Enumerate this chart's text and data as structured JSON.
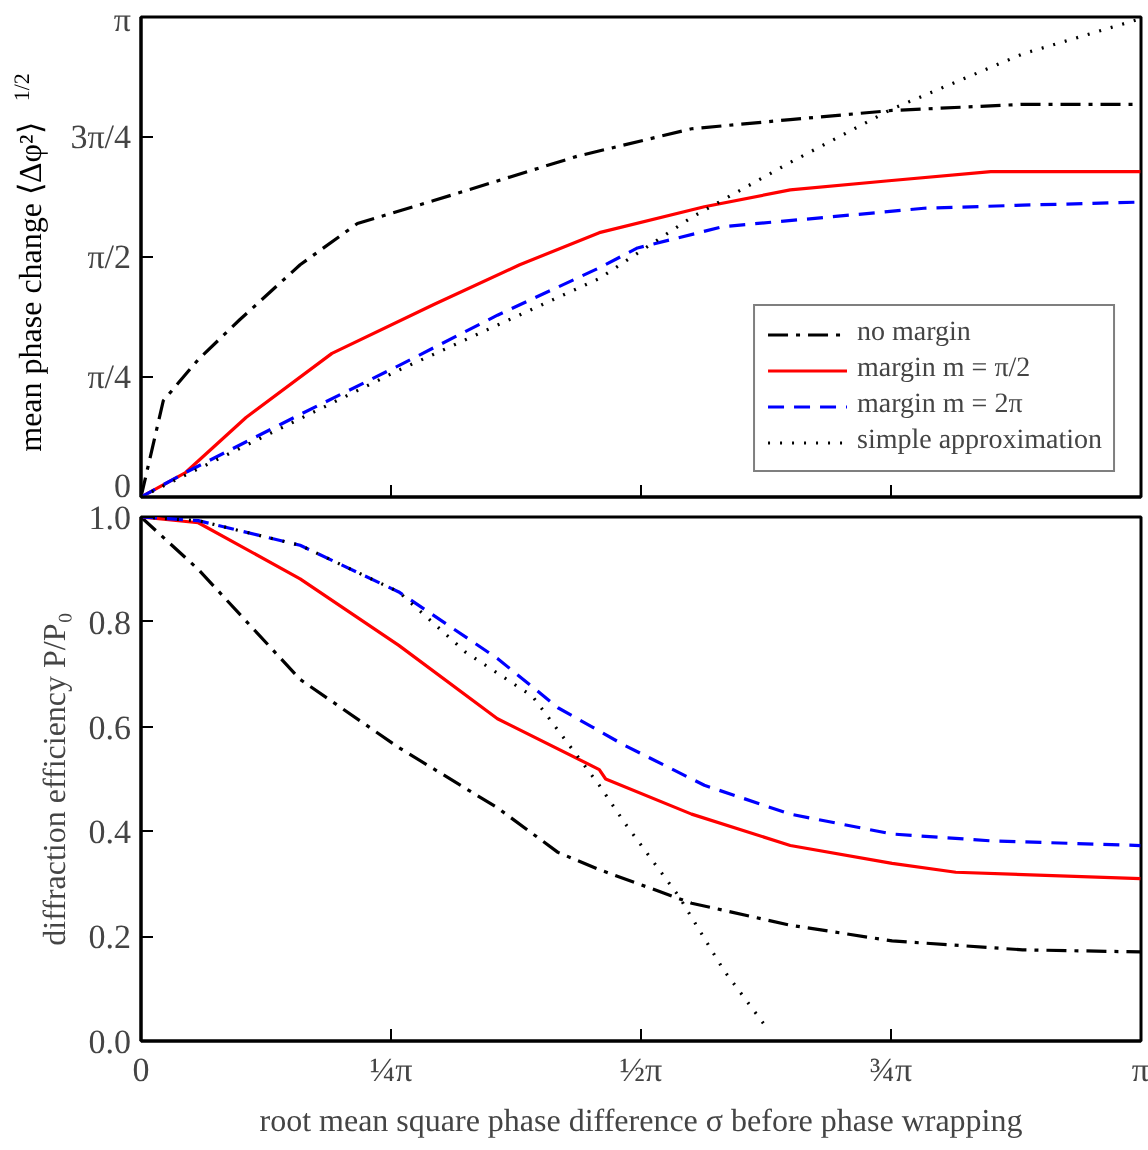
{
  "chart_data": [
    {
      "type": "line",
      "ylabel": "mean phase change ⟨Δφ²⟩$^{1/2}$",
      "xlim": [
        0,
        3.142
      ],
      "ylim": [
        0,
        3.1416
      ],
      "xticks": [
        {
          "value": 0,
          "label": null
        },
        {
          "value": 0.7854,
          "label": null
        },
        {
          "value": 1.5708,
          "label": null
        },
        {
          "value": 2.3562,
          "label": null
        },
        {
          "value": 3.1416,
          "label": null
        }
      ],
      "yticks": [
        {
          "value": 0,
          "label": "0"
        },
        {
          "value": 0.7854,
          "label": "π/4"
        },
        {
          "value": 1.5708,
          "label": "π/2"
        },
        {
          "value": 2.3562,
          "label": "3π/4"
        },
        {
          "value": 3.1416,
          "label": "π"
        }
      ],
      "tick_labels": "y",
      "grid": false,
      "legend": "bottom right",
      "marker": "none",
      "series": [
        {
          "name": "no margin",
          "color": "#000000",
          "line_style": "dashdot",
          "x": [
            0,
            0.07,
            0.18,
            0.31,
            0.5,
            0.68,
            0.92,
            1.37,
            1.73,
            2.04,
            2.36,
            2.77,
            3.14
          ],
          "values": [
            0,
            0.63,
            0.9,
            1.16,
            1.52,
            1.79,
            1.94,
            2.23,
            2.41,
            2.47,
            2.53,
            2.57,
            2.57
          ]
        },
        {
          "name": "margin m = π/2",
          "color": "#ff0000",
          "line_style": "solid",
          "x": [
            0,
            0.14,
            0.33,
            0.6,
            0.92,
            1.19,
            1.44,
            1.77,
            2.04,
            2.35,
            2.67,
            3.14
          ],
          "values": [
            0,
            0.16,
            0.52,
            0.94,
            1.26,
            1.52,
            1.73,
            1.9,
            2.01,
            2.07,
            2.13,
            2.13
          ]
        },
        {
          "name": "margin m = 2π",
          "color": "#0000ff",
          "line_style": "dashed",
          "x": [
            0,
            0.14,
            0.5,
            0.81,
            1.12,
            1.44,
            1.56,
            1.83,
            2.15,
            2.46,
            2.77,
            3.14
          ],
          "values": [
            0,
            0.16,
            0.54,
            0.86,
            1.19,
            1.5,
            1.63,
            1.77,
            1.83,
            1.89,
            1.91,
            1.93
          ]
        },
        {
          "name": "simple approximation",
          "color": "#000000",
          "line_style": "dotted",
          "x": [
            0,
            0.81,
            1.44,
            1.73,
            2.04,
            2.36,
            2.77,
            3.14
          ],
          "values": [
            0,
            0.83,
            1.43,
            1.83,
            2.19,
            2.54,
            2.9,
            3.13
          ]
        }
      ]
    },
    {
      "type": "line",
      "ylabel": "diffraction efficiency P/P₀",
      "xlabel": "root mean square phase difference σ before phase wrapping",
      "xlim": [
        0,
        3.142
      ],
      "ylim": [
        0,
        1
      ],
      "xticks": [
        {
          "value": 0,
          "label": "0"
        },
        {
          "value": 0.7854,
          "label": "¼π"
        },
        {
          "value": 1.5708,
          "label": "½π"
        },
        {
          "value": 2.3562,
          "label": "¾π"
        },
        {
          "value": 3.1416,
          "label": "π"
        }
      ],
      "yticks": [
        {
          "value": 0,
          "label": "0.0"
        },
        0.2,
        0.4,
        0.6,
        0.8,
        {
          "value": 1,
          "label": "1.0"
        }
      ],
      "grid": false,
      "marker": "none",
      "series": [
        {
          "color": "#000000",
          "line_style": "dashdot",
          "x": [
            0,
            0.18,
            0.5,
            0.81,
            1.12,
            1.31,
            1.44,
            1.73,
            2.04,
            2.36,
            2.77,
            3.14
          ],
          "values": [
            1,
            0.9,
            0.69,
            0.56,
            0.445,
            0.36,
            0.327,
            0.263,
            0.221,
            0.191,
            0.174,
            0.17
          ]
        },
        {
          "color": "#ff0000",
          "line_style": "solid",
          "x": [
            0,
            0.18,
            0.5,
            0.81,
            1.12,
            1.44,
            1.46,
            1.73,
            2.04,
            2.36,
            2.56,
            3.14
          ],
          "values": [
            1,
            0.989,
            0.882,
            0.755,
            0.615,
            0.518,
            0.5,
            0.433,
            0.373,
            0.339,
            0.322,
            0.31
          ]
        },
        {
          "color": "#0000ff",
          "line_style": "dashed",
          "x": [
            0,
            0.18,
            0.5,
            0.81,
            1.12,
            1.31,
            1.52,
            1.77,
            2.04,
            2.36,
            2.67,
            3.14
          ],
          "values": [
            1,
            0.993,
            0.946,
            0.857,
            0.73,
            0.636,
            0.564,
            0.488,
            0.433,
            0.395,
            0.382,
            0.373
          ]
        },
        {
          "color": "#000000",
          "line_style": "dotted",
          "x": [
            0,
            0.18,
            0.5,
            0.81,
            1.02,
            1.23,
            1.44,
            1.52,
            1.69,
            1.83,
            1.96
          ],
          "values": [
            1,
            0.993,
            0.946,
            0.857,
            0.742,
            0.658,
            0.488,
            0.416,
            0.276,
            0.136,
            0.03
          ]
        }
      ]
    }
  ]
}
